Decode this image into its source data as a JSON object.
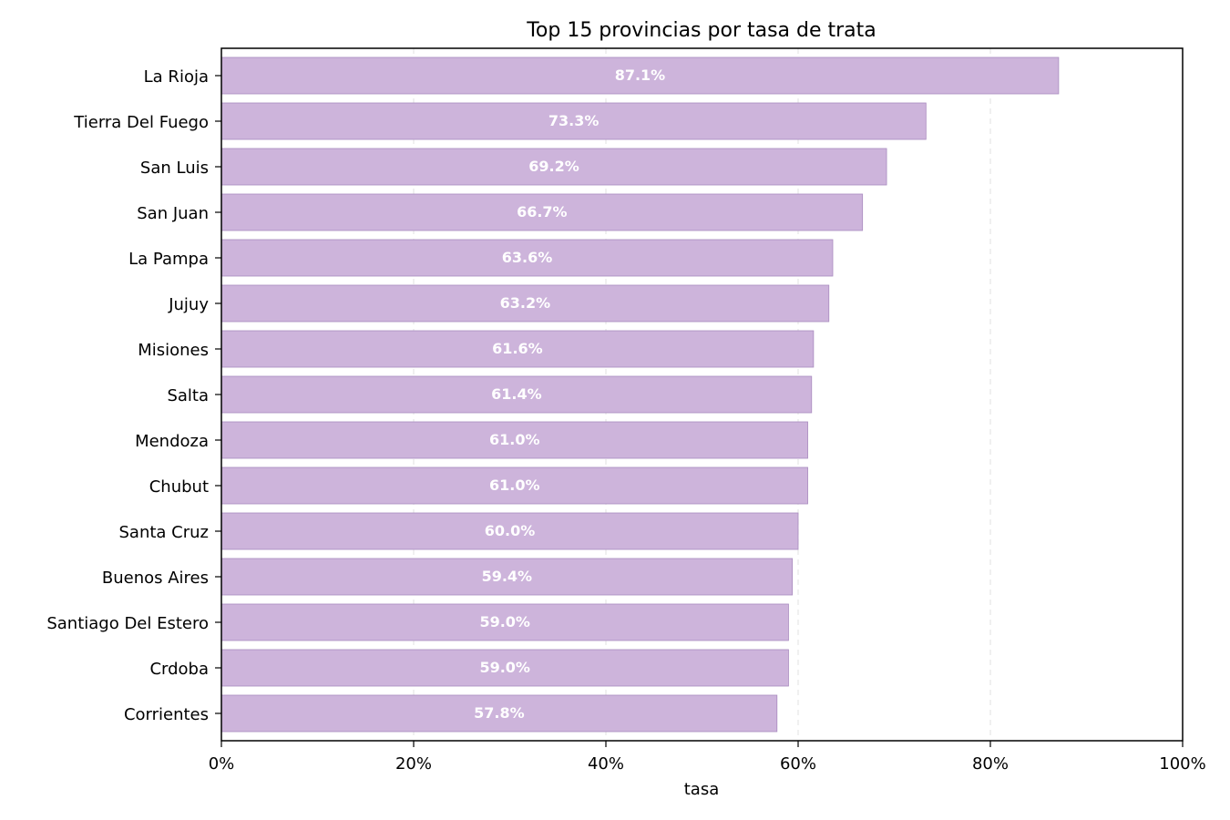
{
  "chart_data": {
    "type": "bar",
    "orientation": "horizontal",
    "title": "Top 15 provincias por tasa de trata",
    "xlabel": "tasa",
    "ylabel": "",
    "xlim": [
      0,
      100
    ],
    "xticks": [
      "0%",
      "20%",
      "40%",
      "60%",
      "80%",
      "100%"
    ],
    "categories": [
      "La Rioja",
      "Tierra Del Fuego",
      "San Luis",
      "San Juan",
      "La Pampa",
      "Jujuy",
      "Misiones",
      "Salta",
      "Mendoza",
      "Chubut",
      "Santa Cruz",
      "Buenos Aires",
      "Santiago Del Estero",
      "Crdoba",
      "Corrientes"
    ],
    "values": [
      87.1,
      73.3,
      69.2,
      66.7,
      63.6,
      63.2,
      61.6,
      61.4,
      61.0,
      61.0,
      60.0,
      59.4,
      59.0,
      59.0,
      57.8
    ],
    "value_labels": [
      "87.1%",
      "73.3%",
      "69.2%",
      "66.7%",
      "63.6%",
      "63.2%",
      "61.6%",
      "61.4%",
      "61.0%",
      "61.0%",
      "60.0%",
      "59.4%",
      "59.0%",
      "59.0%",
      "57.8%"
    ],
    "grid": "x-dashed",
    "bar_color": "#cdb4db",
    "bar_edge_color": "#a98bbf",
    "value_label_color": "#ffffff"
  }
}
